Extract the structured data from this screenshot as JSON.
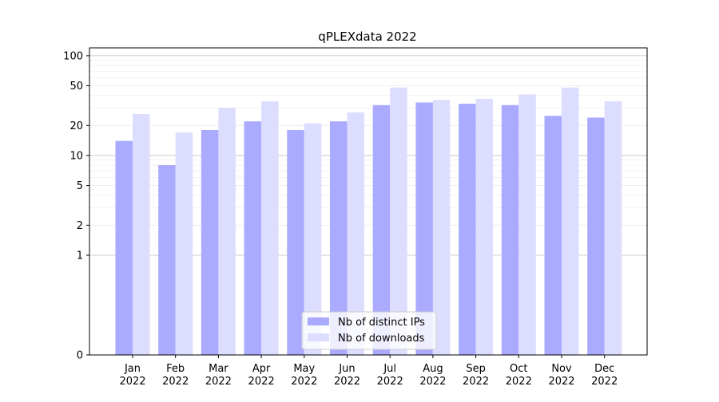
{
  "chart_data": {
    "type": "bar",
    "title": "qPLEXdata 2022",
    "xlabel": "",
    "ylabel": "",
    "y_scale": "symlog",
    "ylim": [
      0,
      120
    ],
    "y_ticks": [
      0,
      1,
      2,
      5,
      10,
      20,
      50,
      100
    ],
    "y_tick_labels": [
      "0",
      "1",
      "2",
      "5",
      "10",
      "20",
      "50",
      "100"
    ],
    "categories": [
      "Jan\n2022",
      "Feb\n2022",
      "Mar\n2022",
      "Apr\n2022",
      "May\n2022",
      "Jun\n2022",
      "Jul\n2022",
      "Aug\n2022",
      "Sep\n2022",
      "Oct\n2022",
      "Nov\n2022",
      "Dec\n2022"
    ],
    "series": [
      {
        "name": "Nb of distinct IPs",
        "color": "#aaaaff",
        "values": [
          14,
          8,
          18,
          22,
          18,
          22,
          32,
          34,
          33,
          32,
          25,
          24
        ]
      },
      {
        "name": "Nb of downloads",
        "color": "#ddddff",
        "values": [
          26,
          17,
          30,
          35,
          21,
          27,
          48,
          36,
          37,
          41,
          48,
          35
        ]
      }
    ],
    "grid": true,
    "legend_position": "lower center"
  }
}
